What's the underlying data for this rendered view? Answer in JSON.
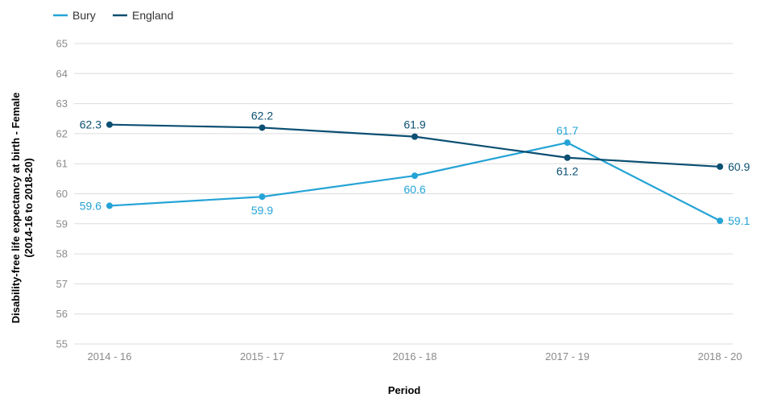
{
  "chart_data": {
    "type": "line",
    "categories": [
      "2014 - 16",
      "2015 - 17",
      "2016 - 18",
      "2017 - 19",
      "2018 - 20"
    ],
    "series": [
      {
        "name": "Bury",
        "values": [
          59.6,
          59.9,
          60.6,
          61.7,
          59.1
        ],
        "color": "#24a3d6"
      },
      {
        "name": "England",
        "values": [
          62.3,
          62.2,
          61.9,
          61.2,
          60.9
        ],
        "color": "#0b4f72"
      }
    ],
    "title": "",
    "xlabel": "Period",
    "ylabel_lines": [
      "Disability-free life expectancy at birth - Female",
      "(2014-16 to 2018-20)"
    ],
    "ylim": [
      55,
      65
    ],
    "yticks": [
      55,
      56,
      57,
      58,
      59,
      60,
      61,
      62,
      63,
      64,
      65
    ],
    "grid": true,
    "legend_position": "top-left"
  }
}
